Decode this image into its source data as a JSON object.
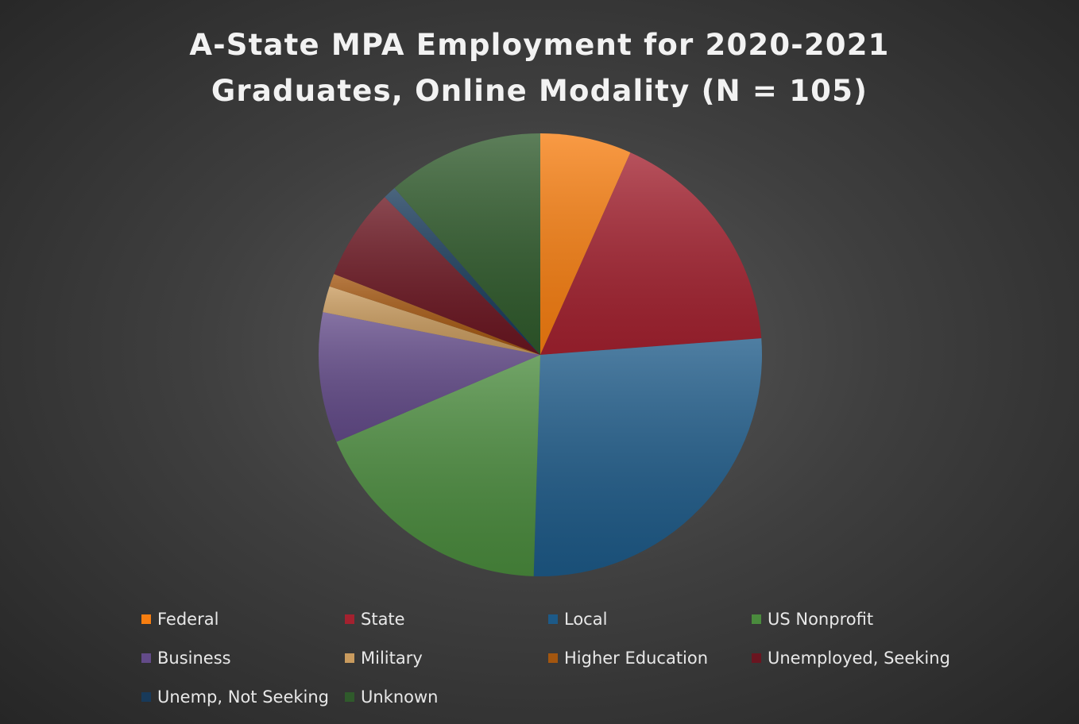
{
  "chart_data": {
    "type": "pie",
    "title": "A-State MPA Employment for 2020-2021 Graduates, Online Modality (N = 105)",
    "categories": [
      "Federal",
      "State",
      "Local",
      "US Nonprofit",
      "Business",
      "Military",
      "Higher Education",
      "Unemployed, Seeking",
      "Unemp, Not Seeking",
      "Unknown"
    ],
    "values": [
      7,
      18,
      28,
      19,
      10,
      2,
      1,
      7,
      1,
      12
    ],
    "colors": [
      "#f77e10",
      "#a3212f",
      "#1d5a88",
      "#4a8b3d",
      "#634b89",
      "#c99b5e",
      "#a3560f",
      "#6a1520",
      "#183a5a",
      "#2f5a2b"
    ],
    "legend": "bottom"
  }
}
